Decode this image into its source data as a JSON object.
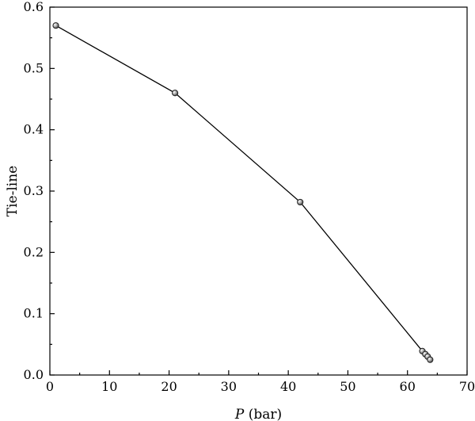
{
  "chart_data": {
    "type": "line",
    "title": "",
    "xlabel_italic": "P",
    "xlabel_rest": " (bar)",
    "ylabel": "Tie-line",
    "xlim": [
      0,
      70
    ],
    "ylim": [
      0.0,
      0.6
    ],
    "xticks": [
      0,
      10,
      20,
      30,
      40,
      50,
      60,
      70
    ],
    "yticks": [
      "0.0",
      "0.1",
      "0.2",
      "0.3",
      "0.4",
      "0.5",
      "0.6"
    ],
    "grid": false,
    "legend": "none",
    "series": [
      {
        "x": [
          1.0,
          21.0,
          42.0,
          62.5,
          63.0,
          63.4,
          63.8
        ],
        "y": [
          0.57,
          0.46,
          0.282,
          0.039,
          0.034,
          0.03,
          0.025
        ]
      }
    ],
    "colors": {
      "line": "#000000",
      "marker": "#9a9a9a"
    }
  }
}
